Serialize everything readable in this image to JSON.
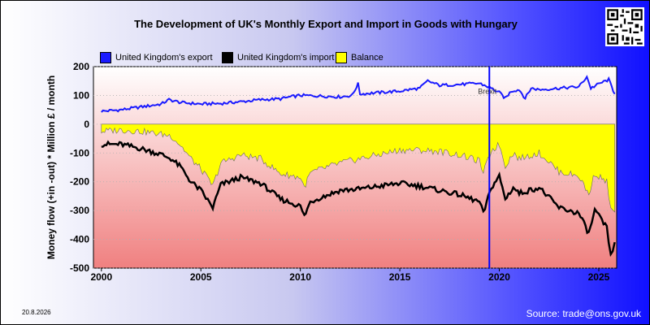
{
  "title": "The Development of UK's Monthly Export and Import in Goods with Hungary",
  "footer": {
    "date": "20.8.2026",
    "source": "Source: trade@ons.gov.uk"
  },
  "colors": {
    "export": "#1a1aff",
    "import": "#000000",
    "balance": "#ffff00",
    "event_line": "#0000ff"
  },
  "chart_data": {
    "type": "line",
    "title": "The Development of UK's Monthly Export and Import in Goods with Hungary",
    "ylabel": "Money flow (+in -out) * Million £ / month",
    "xlabel": "",
    "xlim": [
      1999.6,
      2025.9
    ],
    "ylim": [
      -500,
      200
    ],
    "x_ticks": [
      2000,
      2005,
      2010,
      2015,
      2020,
      2025
    ],
    "y_ticks": [
      200,
      100,
      0,
      -100,
      -200,
      -300,
      -400,
      -500
    ],
    "legend_position": "top",
    "annotation": {
      "label": "Brexit",
      "x": 2019.5
    },
    "series": [
      {
        "name": "United Kingdom's export",
        "points": [
          [
            2000.0,
            45
          ],
          [
            2001.0,
            50
          ],
          [
            2002.0,
            60
          ],
          [
            2003.0,
            70
          ],
          [
            2003.4,
            85
          ],
          [
            2004.0,
            75
          ],
          [
            2005.0,
            70
          ],
          [
            2006.0,
            72
          ],
          [
            2007.0,
            78
          ],
          [
            2008.0,
            85
          ],
          [
            2009.0,
            88
          ],
          [
            2009.5,
            95
          ],
          [
            2010.0,
            100
          ],
          [
            2011.0,
            98
          ],
          [
            2012.0,
            95
          ],
          [
            2012.6,
            100
          ],
          [
            2012.9,
            140
          ],
          [
            2013.0,
            105
          ],
          [
            2014.0,
            110
          ],
          [
            2015.0,
            115
          ],
          [
            2016.0,
            125
          ],
          [
            2016.4,
            150
          ],
          [
            2017.0,
            135
          ],
          [
            2018.0,
            138
          ],
          [
            2019.0,
            142
          ],
          [
            2019.5,
            128
          ],
          [
            2020.0,
            110
          ],
          [
            2020.3,
            90
          ],
          [
            2020.6,
            115
          ],
          [
            2021.0,
            120
          ],
          [
            2021.3,
            90
          ],
          [
            2021.6,
            125
          ],
          [
            2022.0,
            120
          ],
          [
            2023.0,
            125
          ],
          [
            2024.0,
            130
          ],
          [
            2024.4,
            165
          ],
          [
            2024.6,
            125
          ],
          [
            2025.0,
            140
          ],
          [
            2025.5,
            155
          ],
          [
            2025.8,
            105
          ]
        ]
      },
      {
        "name": "United Kingdom's import",
        "points": [
          [
            2000.0,
            -70
          ],
          [
            2001.0,
            -70
          ],
          [
            2002.0,
            -85
          ],
          [
            2003.0,
            -105
          ],
          [
            2003.5,
            -120
          ],
          [
            2004.0,
            -150
          ],
          [
            2004.5,
            -200
          ],
          [
            2005.0,
            -230
          ],
          [
            2005.6,
            -290
          ],
          [
            2006.0,
            -210
          ],
          [
            2007.0,
            -185
          ],
          [
            2008.0,
            -205
          ],
          [
            2009.0,
            -260
          ],
          [
            2010.0,
            -285
          ],
          [
            2010.2,
            -320
          ],
          [
            2010.5,
            -270
          ],
          [
            2011.0,
            -255
          ],
          [
            2012.0,
            -230
          ],
          [
            2013.0,
            -225
          ],
          [
            2014.0,
            -215
          ],
          [
            2015.0,
            -205
          ],
          [
            2016.0,
            -215
          ],
          [
            2017.0,
            -230
          ],
          [
            2018.0,
            -245
          ],
          [
            2019.0,
            -270
          ],
          [
            2019.2,
            -310
          ],
          [
            2019.6,
            -220
          ],
          [
            2020.0,
            -180
          ],
          [
            2020.3,
            -260
          ],
          [
            2020.7,
            -220
          ],
          [
            2021.0,
            -240
          ],
          [
            2022.0,
            -220
          ],
          [
            2022.5,
            -255
          ],
          [
            2023.0,
            -290
          ],
          [
            2024.0,
            -310
          ],
          [
            2024.5,
            -380
          ],
          [
            2024.8,
            -300
          ],
          [
            2025.0,
            -320
          ],
          [
            2025.4,
            -360
          ],
          [
            2025.6,
            -460
          ],
          [
            2025.8,
            -410
          ]
        ]
      },
      {
        "name": "Balance",
        "points": [
          [
            2000.0,
            -25
          ],
          [
            2001.0,
            -20
          ],
          [
            2002.0,
            -25
          ],
          [
            2003.0,
            -35
          ],
          [
            2003.5,
            -40
          ],
          [
            2004.0,
            -75
          ],
          [
            2004.5,
            -120
          ],
          [
            2005.0,
            -155
          ],
          [
            2005.6,
            -215
          ],
          [
            2006.0,
            -135
          ],
          [
            2007.0,
            -107
          ],
          [
            2008.0,
            -120
          ],
          [
            2009.0,
            -172
          ],
          [
            2010.0,
            -185
          ],
          [
            2010.2,
            -220
          ],
          [
            2010.5,
            -170
          ],
          [
            2011.0,
            -157
          ],
          [
            2012.0,
            -135
          ],
          [
            2013.0,
            -120
          ],
          [
            2014.0,
            -105
          ],
          [
            2015.0,
            -90
          ],
          [
            2016.0,
            -90
          ],
          [
            2017.0,
            -95
          ],
          [
            2018.0,
            -107
          ],
          [
            2019.0,
            -128
          ],
          [
            2019.2,
            -170
          ],
          [
            2019.6,
            -92
          ],
          [
            2020.0,
            -70
          ],
          [
            2020.3,
            -145
          ],
          [
            2020.7,
            -100
          ],
          [
            2021.0,
            -120
          ],
          [
            2022.0,
            -100
          ],
          [
            2022.5,
            -130
          ],
          [
            2023.0,
            -165
          ],
          [
            2024.0,
            -180
          ],
          [
            2024.5,
            -245
          ],
          [
            2024.8,
            -170
          ],
          [
            2025.0,
            -180
          ],
          [
            2025.4,
            -200
          ],
          [
            2025.6,
            -300
          ],
          [
            2025.8,
            -305
          ]
        ]
      }
    ]
  }
}
